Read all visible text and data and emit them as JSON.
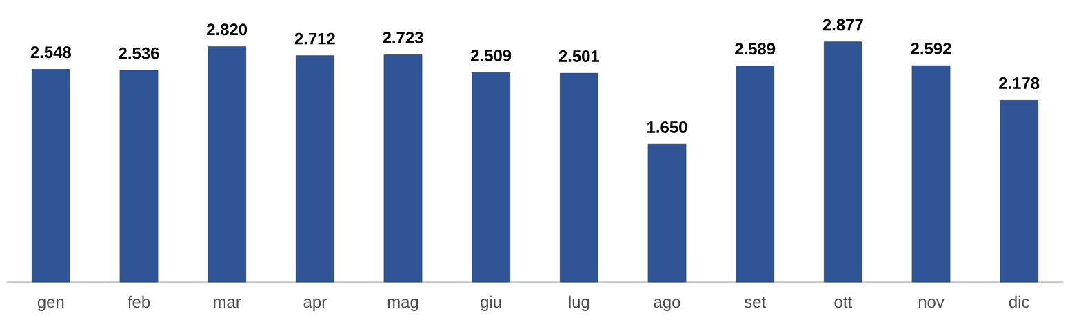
{
  "chart_data": {
    "type": "bar",
    "categories": [
      "gen",
      "feb",
      "mar",
      "apr",
      "mag",
      "giu",
      "lug",
      "ago",
      "set",
      "ott",
      "nov",
      "dic"
    ],
    "values": [
      2548,
      2536,
      2820,
      2712,
      2723,
      2509,
      2501,
      1650,
      2589,
      2877,
      2592,
      2178
    ],
    "value_labels": [
      "2.548",
      "2.536",
      "2.820",
      "2.712",
      "2.723",
      "2.509",
      "2.501",
      "1.650",
      "2.589",
      "2.877",
      "2.592",
      "2.178"
    ],
    "color": "#2f5597"
  }
}
